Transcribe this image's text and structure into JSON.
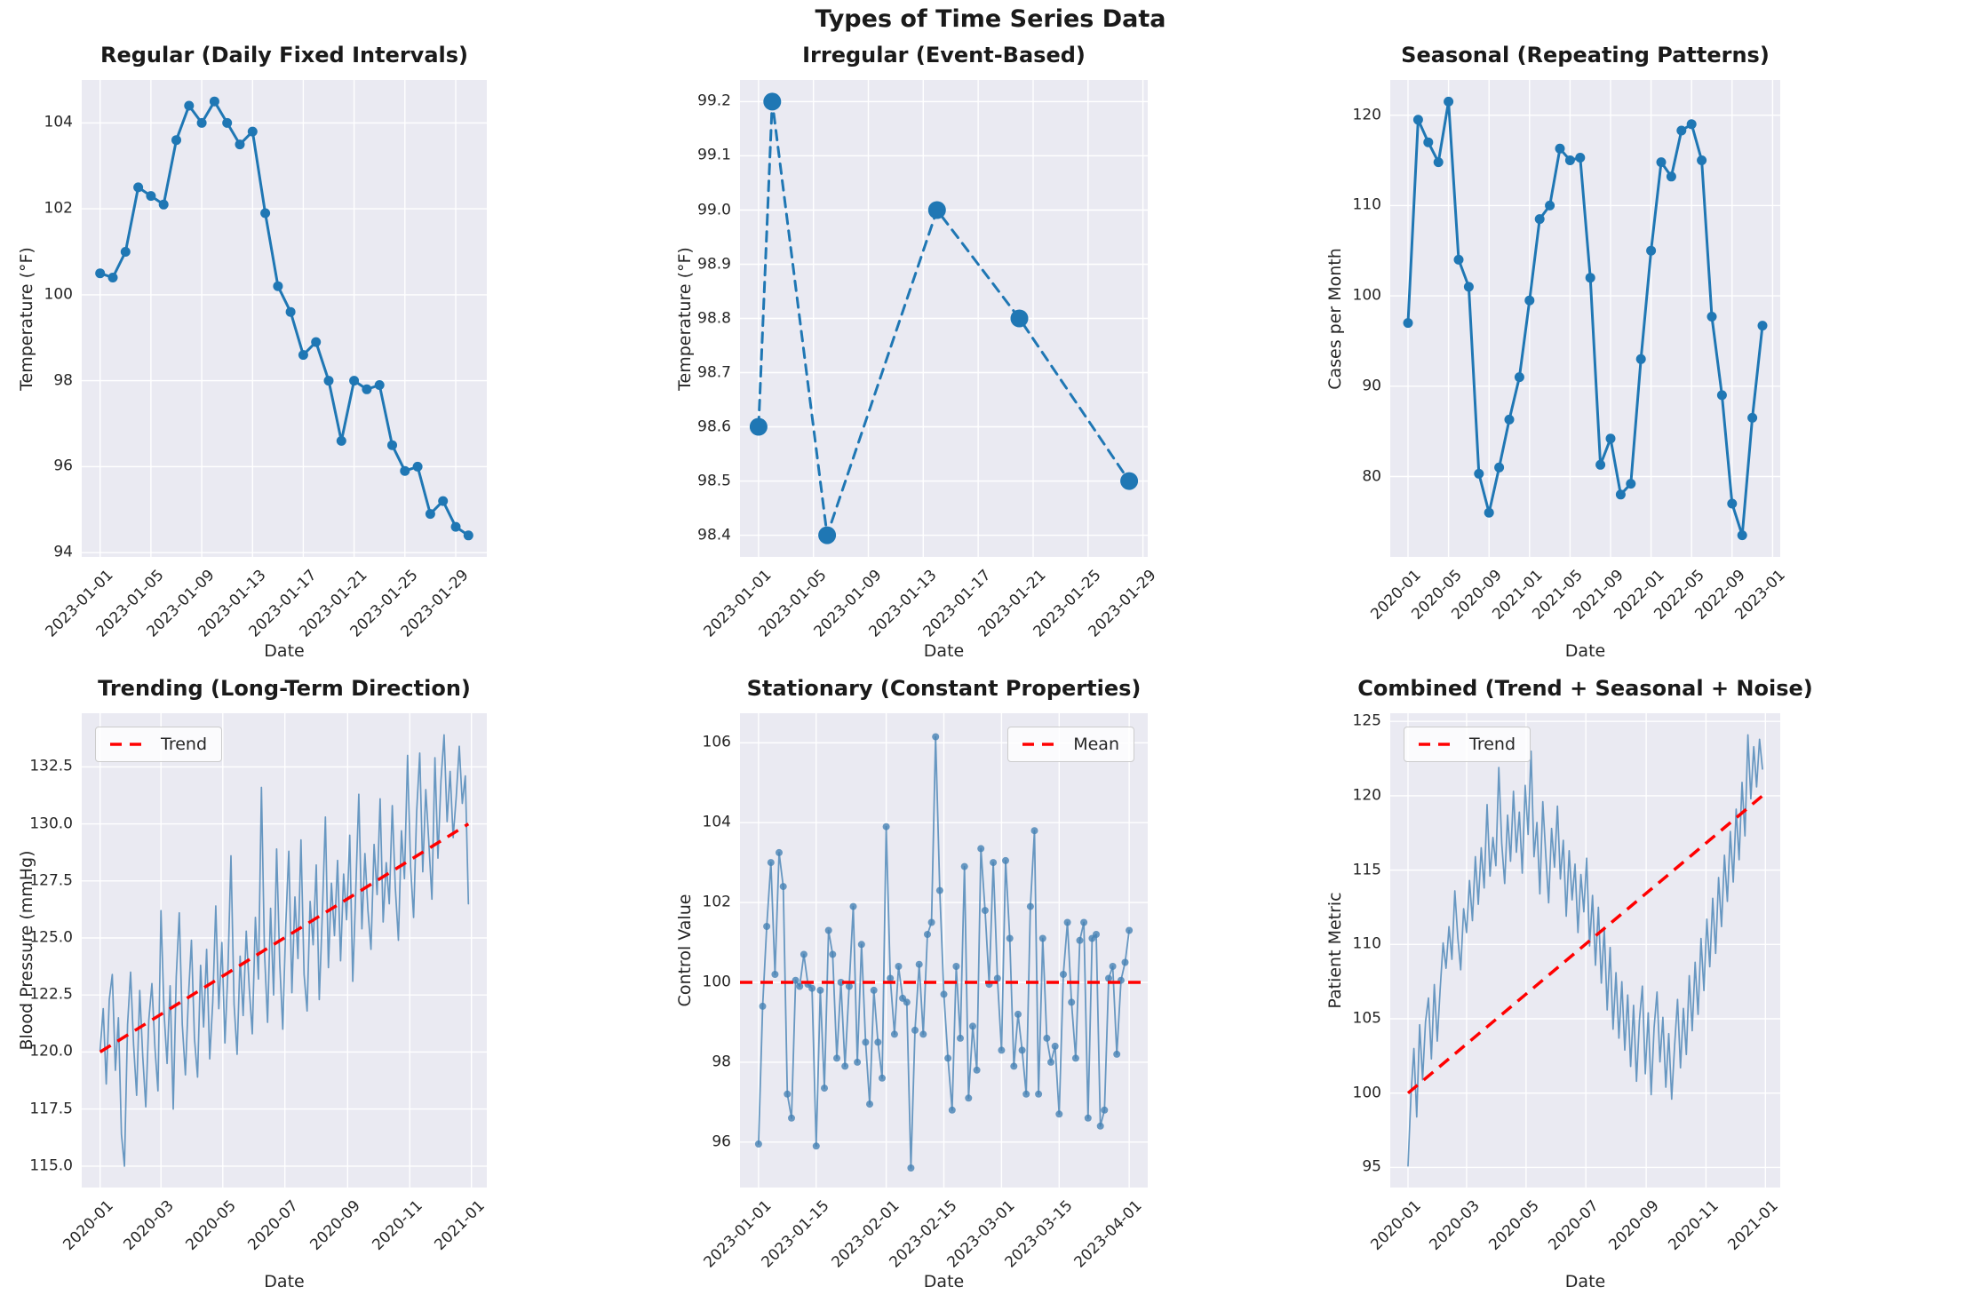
{
  "figure": {
    "suptitle": "Types of Time Series Data"
  },
  "style": {
    "axes_bg": "#eaeaf2",
    "grid": "#ffffff",
    "text": "#262626",
    "strong_blue": "#1f77b4",
    "soft_blue": "#4682b4",
    "trend_red": "#ff0000"
  },
  "chart_data": [
    {
      "type": "line",
      "title": "Regular (Daily Fixed Intervals)",
      "xlabel": "Date",
      "ylabel": "Temperature (°F)",
      "x_start": "2023-01-01",
      "x_freq": "daily",
      "values": [
        100.5,
        100.4,
        101.0,
        102.5,
        102.3,
        102.1,
        103.6,
        104.4,
        104.0,
        104.5,
        104.0,
        103.5,
        103.8,
        101.9,
        100.2,
        99.6,
        98.6,
        98.9,
        98.0,
        96.6,
        98.0,
        97.8,
        97.9,
        96.5,
        95.9,
        96.0,
        94.9,
        95.2,
        94.6,
        94.4
      ],
      "x_tick_pos": [
        0,
        4,
        8,
        12,
        16,
        20,
        24,
        28
      ],
      "x_tick_labels": [
        "2023-01-01",
        "2023-01-05",
        "2023-01-09",
        "2023-01-13",
        "2023-01-17",
        "2023-01-21",
        "2023-01-25",
        "2023-01-29"
      ],
      "y_ticks": [
        94,
        96,
        98,
        100,
        102,
        104
      ],
      "y_tick_labels": [
        "94",
        "96",
        "98",
        "100",
        "102",
        "104"
      ],
      "xlim": [
        -1.45,
        30.45
      ],
      "ylim": [
        93.9,
        105.0
      ],
      "color": "#1f77b4",
      "opacity": 1,
      "line_width": 3,
      "marker_radius": 5.5,
      "dash": null,
      "trend": null,
      "legend": null
    },
    {
      "type": "line",
      "title": "Irregular (Event-Based)",
      "xlabel": "Date",
      "ylabel": "Temperature (°F)",
      "event_dates": [
        "2023-01-01",
        "2023-01-02",
        "2023-01-06",
        "2023-01-14",
        "2023-01-20",
        "2023-01-28"
      ],
      "x": [
        0,
        1,
        5,
        13,
        19,
        27
      ],
      "values": [
        98.6,
        99.2,
        98.4,
        99.0,
        98.8,
        98.5
      ],
      "x_tick_pos": [
        0,
        4,
        8,
        12,
        16,
        20,
        24,
        28
      ],
      "x_tick_labels": [
        "2023-01-01",
        "2023-01-05",
        "2023-01-09",
        "2023-01-13",
        "2023-01-17",
        "2023-01-21",
        "2023-01-25",
        "2023-01-29"
      ],
      "y_ticks": [
        98.4,
        98.5,
        98.6,
        98.7,
        98.8,
        98.9,
        99.0,
        99.1,
        99.2
      ],
      "y_tick_labels": [
        "98.4",
        "98.5",
        "98.6",
        "98.7",
        "98.8",
        "98.9",
        "99.0",
        "99.1",
        "99.2"
      ],
      "xlim": [
        -1.35,
        28.35
      ],
      "ylim": [
        98.36,
        99.24
      ],
      "color": "#1f77b4",
      "opacity": 1,
      "line_width": 3,
      "marker_radius": 10,
      "dash": "11 8",
      "trend": null,
      "legend": null
    },
    {
      "type": "line",
      "title": "Seasonal (Repeating Patterns)",
      "xlabel": "Date",
      "ylabel": "Cases per Month",
      "x_start": "2020-01",
      "x_freq": "monthly",
      "values": [
        97,
        119.5,
        117,
        114.8,
        121.5,
        104,
        101,
        80.3,
        76,
        81,
        86.3,
        91,
        99.5,
        108.5,
        110,
        116.3,
        115,
        115.3,
        102,
        81.3,
        84.2,
        78,
        79.2,
        93,
        105,
        114.8,
        113.2,
        118.3,
        119,
        115,
        97.7,
        89,
        77,
        73.5,
        86.5,
        96.7
      ],
      "x_tick_pos": [
        0,
        4,
        8,
        12,
        16,
        20,
        24,
        28,
        32,
        36
      ],
      "x_tick_labels": [
        "2020-01",
        "2020-05",
        "2020-09",
        "2021-01",
        "2021-05",
        "2021-09",
        "2022-01",
        "2022-05",
        "2022-09",
        "2023-01"
      ],
      "y_ticks": [
        80,
        90,
        100,
        110,
        120
      ],
      "y_tick_labels": [
        "80",
        "90",
        "100",
        "110",
        "120"
      ],
      "xlim": [
        -1.75,
        36.75
      ],
      "ylim": [
        71.1,
        123.9
      ],
      "color": "#1f77b4",
      "opacity": 1,
      "line_width": 3,
      "marker_radius": 5.5,
      "dash": null,
      "trend": null,
      "legend": null
    },
    {
      "type": "line",
      "title": "Trending (Long-Term Direction)",
      "xlabel": "Date",
      "ylabel": "Blood Pressure (mmHg)",
      "x_start": "2020-01-01",
      "x_freq": "approx_3day_samples_of_daily_series",
      "values": [
        120.1,
        121.9,
        118.6,
        122.3,
        123.4,
        119.2,
        121.5,
        116.4,
        115.0,
        121.2,
        123.5,
        120.3,
        118.1,
        122.7,
        119.8,
        117.6,
        121.4,
        123.0,
        120.2,
        118.3,
        126.2,
        121.7,
        119.5,
        122.9,
        117.5,
        123.3,
        126.1,
        121.2,
        119.0,
        122.4,
        124.9,
        120.6,
        118.9,
        123.8,
        121.1,
        124.5,
        119.7,
        122.2,
        126.4,
        121.9,
        124.8,
        120.4,
        123.6,
        128.6,
        122.1,
        119.9,
        124.2,
        121.6,
        125.3,
        122.8,
        120.8,
        125.9,
        123.2,
        131.6,
        124.4,
        121.3,
        126.3,
        122.5,
        128.9,
        123.9,
        121.0,
        125.6,
        128.8,
        122.6,
        126.8,
        124.1,
        129.3,
        123.4,
        121.8,
        126.6,
        124.7,
        128.2,
        122.3,
        126.0,
        130.3,
        123.7,
        127.4,
        125.1,
        128.4,
        124.0,
        127.8,
        125.8,
        129.5,
        123.1,
        127.1,
        131.3,
        125.4,
        128.7,
        126.2,
        124.5,
        129.1,
        126.9,
        131.1,
        125.7,
        128.3,
        126.5,
        130.8,
        127.2,
        124.9,
        129.7,
        127.6,
        133.0,
        128.1,
        125.9,
        130.5,
        133.1,
        127.9,
        131.5,
        129.2,
        126.7,
        132.9,
        128.5,
        131.9,
        133.9,
        130.1,
        132.3,
        129.4,
        131.2,
        133.4,
        130.9,
        132.1,
        126.5
      ],
      "x_tick_pos": [
        0,
        20,
        40.3,
        60.7,
        81.3,
        101.7,
        122
      ],
      "x_tick_labels": [
        "2020-01",
        "2020-03",
        "2020-05",
        "2020-07",
        "2020-09",
        "2020-11",
        "2021-01"
      ],
      "y_ticks": [
        115,
        117.5,
        120,
        122.5,
        125,
        127.5,
        130,
        132.5
      ],
      "y_tick_labels": [
        "115.0",
        "117.5",
        "120.0",
        "122.5",
        "125.0",
        "127.5",
        "130.0",
        "132.5"
      ],
      "xlim": [
        -6.05,
        127.05
      ],
      "ylim": [
        114.06,
        134.85
      ],
      "color": "#4682b4",
      "opacity": 0.8,
      "line_width": 1.7,
      "marker_radius": 0,
      "dash": null,
      "trend": {
        "kind": "line",
        "label": "Trend",
        "x": [
          0,
          121
        ],
        "y": [
          120.0,
          130.0
        ],
        "color": "#ff0000"
      },
      "legend": {
        "label": "Trend",
        "pos": "nw"
      }
    },
    {
      "type": "line",
      "title": "Stationary (Constant Properties)",
      "xlabel": "Date",
      "ylabel": "Control Value",
      "x_start": "2023-01-01",
      "x_freq": "daily",
      "values": [
        95.95,
        99.4,
        101.4,
        103.0,
        100.2,
        103.25,
        102.4,
        97.2,
        96.6,
        100.05,
        99.9,
        100.7,
        99.95,
        99.85,
        95.9,
        99.8,
        97.35,
        101.3,
        100.7,
        98.1,
        100.0,
        97.9,
        99.9,
        101.9,
        98.0,
        100.95,
        98.5,
        96.95,
        99.8,
        98.5,
        97.6,
        103.9,
        100.1,
        98.7,
        100.4,
        99.6,
        99.5,
        95.35,
        98.8,
        100.45,
        98.7,
        101.2,
        101.5,
        106.15,
        102.3,
        99.7,
        98.1,
        96.8,
        100.4,
        98.6,
        102.9,
        97.1,
        98.9,
        97.8,
        103.35,
        101.8,
        99.95,
        103.0,
        100.1,
        98.3,
        103.05,
        101.1,
        97.9,
        99.2,
        98.3,
        97.2,
        101.9,
        103.8,
        97.2,
        101.1,
        98.6,
        98.0,
        98.4,
        96.7,
        100.2,
        101.5,
        99.5,
        98.1,
        101.05,
        101.5,
        96.6,
        101.1,
        101.2,
        96.4,
        96.8,
        100.1,
        100.4,
        98.2,
        100.05,
        100.5,
        101.3
      ],
      "x_tick_pos": [
        0,
        14,
        31,
        45,
        59,
        73,
        90
      ],
      "x_tick_labels": [
        "2023-01-01",
        "2023-01-15",
        "2023-02-01",
        "2023-02-15",
        "2023-03-01",
        "2023-03-15",
        "2023-04-01"
      ],
      "y_ticks": [
        96,
        98,
        100,
        102,
        104,
        106
      ],
      "y_tick_labels": [
        "96",
        "98",
        "100",
        "102",
        "104",
        "106"
      ],
      "xlim": [
        -4.5,
        94.5
      ],
      "ylim": [
        94.86,
        106.74
      ],
      "color": "#4682b4",
      "opacity": 0.8,
      "line_width": 1.8,
      "marker_radius": 4,
      "dash": null,
      "trend": {
        "kind": "hline",
        "label": "Mean",
        "y": 100.0,
        "color": "#ff0000"
      },
      "legend": {
        "label": "Mean",
        "pos": "ne"
      }
    },
    {
      "type": "line",
      "title": "Combined (Trend + Seasonal + Noise)",
      "xlabel": "Date",
      "ylabel": "Patient Metric",
      "x_start": "2020-01-01",
      "x_freq": "approx_3day_samples_of_daily_series",
      "values": [
        95.1,
        99.8,
        103.0,
        98.4,
        104.6,
        100.9,
        104.8,
        106.4,
        102.3,
        107.3,
        103.5,
        107.0,
        110.1,
        108.4,
        111.2,
        109.0,
        113.6,
        110.5,
        108.3,
        112.4,
        110.8,
        114.3,
        111.6,
        115.9,
        112.7,
        116.5,
        113.8,
        119.4,
        114.6,
        117.2,
        115.3,
        121.9,
        116.8,
        114.1,
        118.7,
        115.6,
        120.3,
        116.2,
        118.9,
        114.8,
        120.7,
        117.4,
        123.0,
        115.9,
        118.2,
        113.4,
        119.6,
        116.1,
        112.8,
        117.8,
        115.2,
        119.3,
        114.4,
        117.0,
        111.9,
        116.3,
        113.0,
        115.4,
        110.8,
        114.7,
        112.2,
        115.8,
        109.9,
        113.3,
        108.6,
        112.5,
        107.4,
        111.1,
        105.6,
        109.8,
        104.3,
        108.1,
        103.7,
        107.5,
        102.9,
        106.6,
        101.8,
        105.9,
        100.8,
        104.9,
        107.2,
        101.3,
        105.4,
        99.9,
        104.4,
        106.8,
        102.1,
        105.1,
        100.4,
        104.0,
        99.6,
        103.2,
        106.3,
        101.7,
        105.7,
        102.6,
        107.9,
        104.2,
        108.8,
        105.3,
        110.4,
        106.9,
        111.7,
        108.5,
        113.1,
        109.4,
        114.5,
        111.2,
        116.0,
        112.9,
        117.6,
        114.2,
        119.1,
        115.7,
        120.9,
        117.3,
        124.1,
        119.8,
        123.3,
        120.6,
        123.8,
        121.8
      ],
      "x_tick_pos": [
        0,
        20,
        40.3,
        60.7,
        81.3,
        101.7,
        122
      ],
      "x_tick_labels": [
        "2020-01",
        "2020-03",
        "2020-05",
        "2020-07",
        "2020-09",
        "2020-11",
        "2021-01"
      ],
      "y_ticks": [
        95,
        100,
        105,
        110,
        115,
        120,
        125
      ],
      "y_tick_labels": [
        "95",
        "100",
        "105",
        "110",
        "115",
        "120",
        "125"
      ],
      "xlim": [
        -6.05,
        127.05
      ],
      "ylim": [
        93.65,
        125.55
      ],
      "color": "#4682b4",
      "opacity": 0.8,
      "line_width": 1.7,
      "marker_radius": 0,
      "dash": null,
      "trend": {
        "kind": "line",
        "label": "Trend",
        "x": [
          0,
          121
        ],
        "y": [
          100.0,
          120.0
        ],
        "color": "#ff0000"
      },
      "legend": {
        "label": "Trend",
        "pos": "nw"
      }
    }
  ]
}
